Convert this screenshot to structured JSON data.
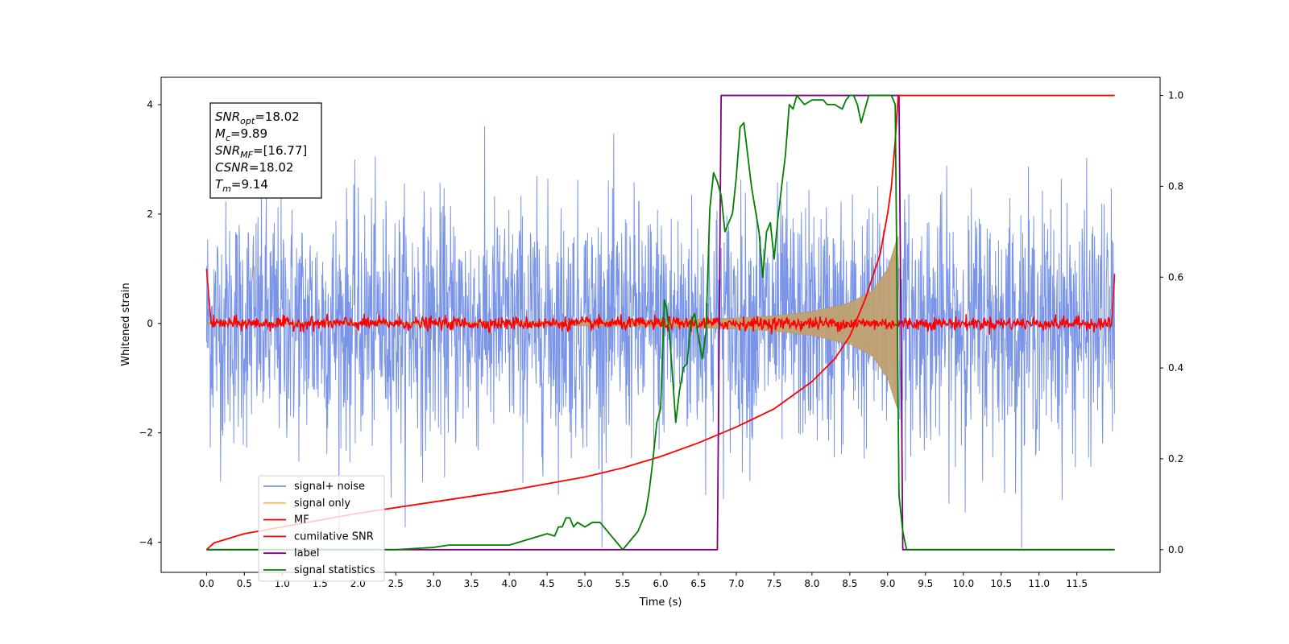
{
  "chart_data": {
    "type": "line",
    "xlabel": "Time (s)",
    "ylabel": "Whitened strain",
    "xlim": [
      -0.6,
      12.6
    ],
    "ylim_left": [
      -4.55,
      4.5
    ],
    "ylim_right": [
      -0.05,
      1.04
    ],
    "xticks": [
      "0.0",
      "0.5",
      "1.0",
      "1.5",
      "2.0",
      "2.5",
      "3.0",
      "3.5",
      "4.0",
      "4.5",
      "5.0",
      "5.5",
      "6.0",
      "6.5",
      "7.0",
      "7.5",
      "8.0",
      "8.5",
      "9.0",
      "9.5",
      "10.0",
      "10.5",
      "11.0",
      "11.5"
    ],
    "yticks_left": [
      "4",
      "2",
      "0",
      "−2",
      "−4"
    ],
    "yticks_right": [
      "1.0",
      "0.8",
      "0.6",
      "0.4",
      "0.2",
      "0.0"
    ],
    "grid": false,
    "legend_position": "lower-left",
    "annotation": {
      "lines": [
        {
          "sym": "SNR",
          "sub": "opt",
          "value": "=18.02"
        },
        {
          "sym": "M",
          "sub": "c",
          "value": "=9.89"
        },
        {
          "sym": "SNR",
          "sub": "MF",
          "value": "=[16.77]"
        },
        {
          "sym": "CSNR",
          "sub": "",
          "value": "=18.02"
        },
        {
          "sym": "T",
          "sub": "m",
          "value": "=9.14"
        }
      ]
    },
    "series": [
      {
        "name": "signal+ noise",
        "axis": "left",
        "color": "#7a95e8",
        "kind": "noise",
        "x_range": [
          0,
          12
        ],
        "amplitude_range": [
          -4.1,
          4.1
        ],
        "typical_sd": 1.1
      },
      {
        "name": "signal only",
        "axis": "left",
        "color": "#f0c060",
        "kind": "chirp",
        "x_range": [
          0,
          9.14
        ],
        "envelope_x": [
          0,
          2,
          4,
          6,
          7,
          7.5,
          8,
          8.5,
          8.8,
          9.0,
          9.1,
          9.14
        ],
        "envelope_y": [
          0.015,
          0.02,
          0.03,
          0.06,
          0.1,
          0.14,
          0.22,
          0.38,
          0.6,
          1.0,
          1.45,
          1.6
        ]
      },
      {
        "name": "MF",
        "axis": "left",
        "color": "#ff0000",
        "kind": "mf",
        "x_range": [
          0,
          12
        ],
        "baseline_sd": 0.06,
        "start_value": 1.0,
        "end_value": 0.9
      },
      {
        "name": "cumilative SNR",
        "axis": "right",
        "color": "#ff0000",
        "x": [
          0,
          0.1,
          0.5,
          1.0,
          2.0,
          3.0,
          4.0,
          5.0,
          5.5,
          6.0,
          6.5,
          7.0,
          7.5,
          8.0,
          8.3,
          8.5,
          8.7,
          8.9,
          9.0,
          9.05,
          9.1,
          9.12,
          9.14,
          12.0
        ],
        "values": [
          0,
          0.015,
          0.035,
          0.05,
          0.08,
          0.105,
          0.13,
          0.16,
          0.18,
          0.205,
          0.235,
          0.27,
          0.31,
          0.37,
          0.42,
          0.47,
          0.55,
          0.65,
          0.74,
          0.8,
          0.9,
          0.95,
          1.0,
          1.0
        ]
      },
      {
        "name": "label",
        "axis": "right",
        "color": "#800080",
        "x": [
          0,
          6.75,
          6.8,
          9.15,
          9.2,
          12.0
        ],
        "values": [
          0,
          0,
          1,
          1,
          0,
          0
        ]
      },
      {
        "name": "signal statistics",
        "axis": "right",
        "color": "#008000",
        "x": [
          0,
          2.5,
          3.0,
          3.2,
          3.4,
          3.6,
          3.8,
          4.0,
          4.2,
          4.4,
          4.5,
          4.6,
          4.65,
          4.7,
          4.75,
          4.8,
          4.85,
          4.9,
          5.0,
          5.1,
          5.2,
          5.3,
          5.4,
          5.5,
          5.6,
          5.7,
          5.75,
          5.8,
          5.85,
          5.9,
          5.95,
          6.0,
          6.05,
          6.08,
          6.12,
          6.15,
          6.2,
          6.25,
          6.3,
          6.35,
          6.4,
          6.45,
          6.5,
          6.55,
          6.6,
          6.65,
          6.7,
          6.75,
          6.8,
          6.85,
          6.9,
          6.95,
          7.0,
          7.05,
          7.1,
          7.15,
          7.2,
          7.3,
          7.35,
          7.4,
          7.45,
          7.5,
          7.55,
          7.6,
          7.65,
          7.7,
          7.75,
          7.8,
          7.85,
          7.9,
          8.0,
          8.1,
          8.15,
          8.2,
          8.3,
          8.4,
          8.45,
          8.5,
          8.55,
          8.6,
          8.65,
          8.7,
          8.75,
          8.8,
          8.9,
          9.0,
          9.05,
          9.1,
          9.15,
          9.2,
          9.25,
          9.3,
          10.0,
          11.0,
          12.0
        ],
        "values": [
          0,
          0.0,
          0.005,
          0.01,
          0.01,
          0.01,
          0.01,
          0.01,
          0.02,
          0.03,
          0.035,
          0.03,
          0.05,
          0.05,
          0.07,
          0.07,
          0.05,
          0.06,
          0.05,
          0.06,
          0.06,
          0.04,
          0.02,
          0.0,
          0.02,
          0.04,
          0.06,
          0.08,
          0.13,
          0.2,
          0.28,
          0.31,
          0.55,
          0.53,
          0.47,
          0.4,
          0.28,
          0.35,
          0.4,
          0.41,
          0.5,
          0.52,
          0.47,
          0.42,
          0.48,
          0.75,
          0.83,
          0.81,
          0.78,
          0.7,
          0.72,
          0.74,
          0.82,
          0.93,
          0.94,
          0.87,
          0.8,
          0.7,
          0.6,
          0.7,
          0.72,
          0.64,
          0.73,
          0.8,
          0.87,
          0.98,
          0.97,
          1.0,
          0.99,
          0.98,
          0.99,
          0.99,
          0.99,
          0.98,
          0.98,
          0.97,
          0.99,
          1.0,
          1.0,
          0.98,
          0.94,
          0.97,
          1.0,
          1.0,
          1.0,
          1.0,
          1.0,
          0.98,
          0.12,
          0.04,
          0.0,
          0.0,
          0.0,
          0.0,
          0.0
        ]
      }
    ]
  }
}
